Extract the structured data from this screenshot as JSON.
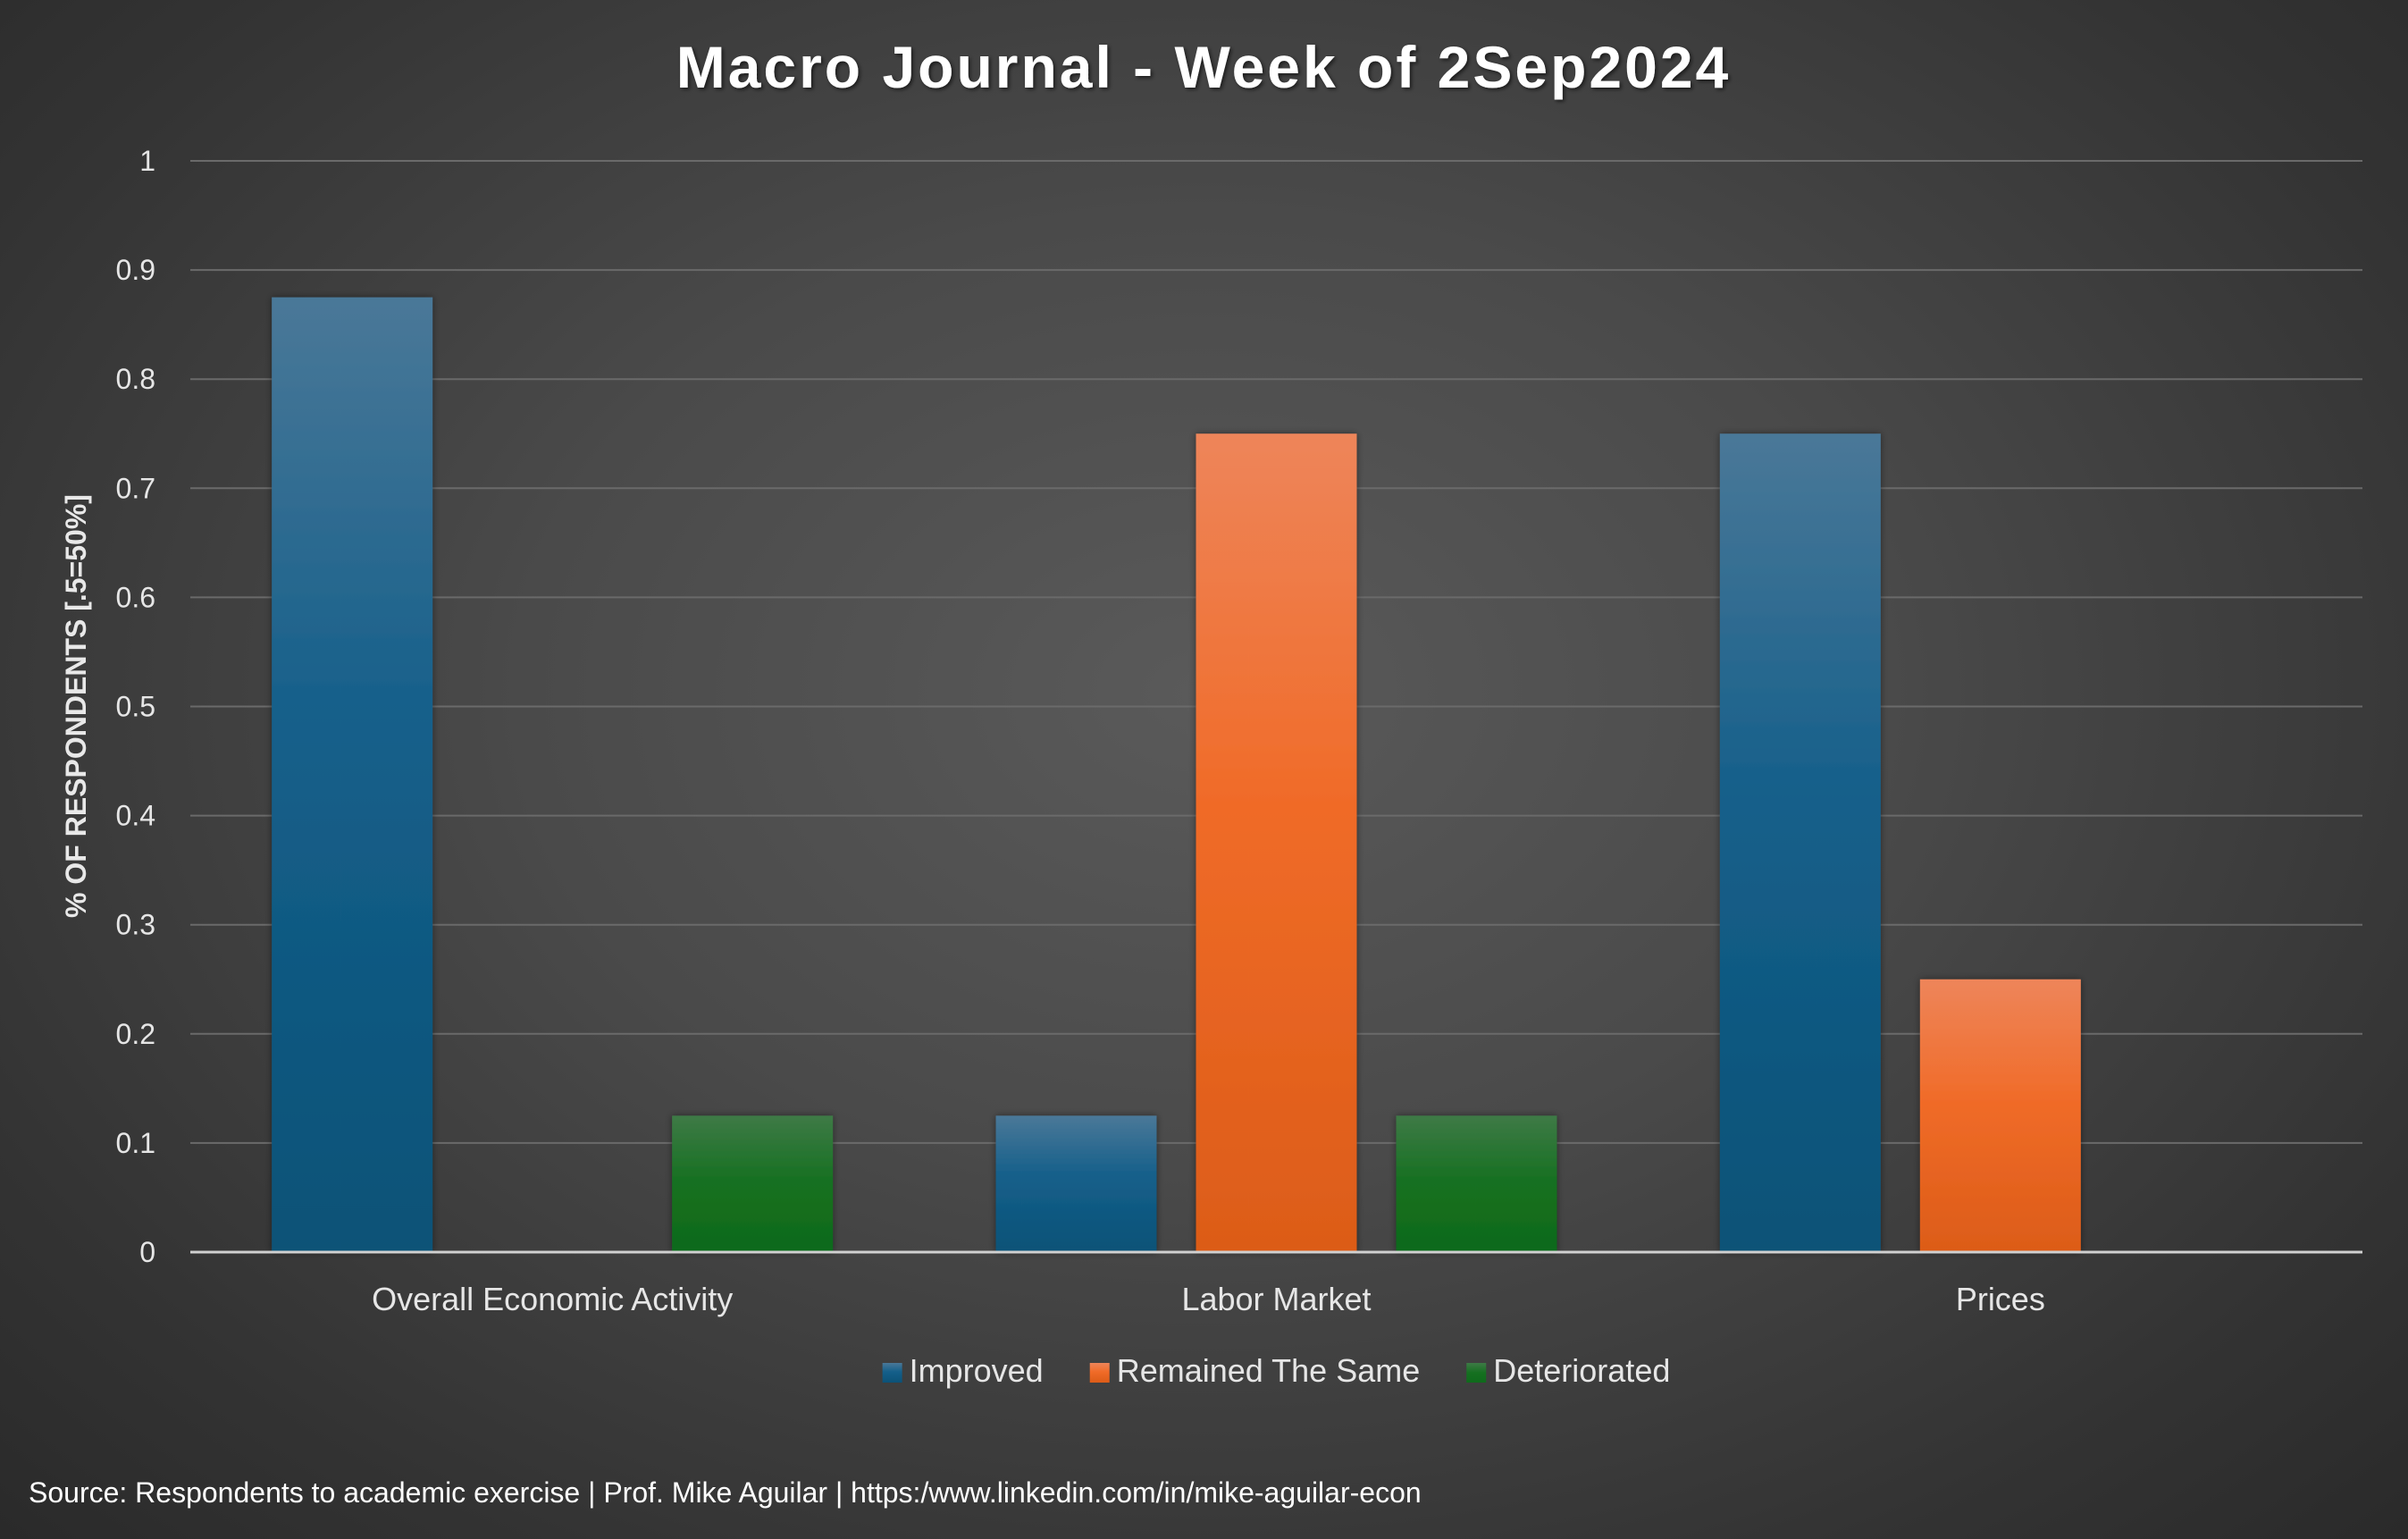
{
  "chart_data": {
    "type": "bar",
    "title": "Macro Journal - Week of 2Sep2024",
    "xlabel": "",
    "ylabel": "% OF RESPONDENTS [.5=50%]",
    "ylim": [
      0,
      1
    ],
    "yticks": [
      "0",
      "0.1",
      "0.2",
      "0.3",
      "0.4",
      "0.5",
      "0.6",
      "0.7",
      "0.8",
      "0.9",
      "1"
    ],
    "categories": [
      "Overall Economic Activity",
      "Labor Market",
      "Prices"
    ],
    "series": [
      {
        "name": "Improved",
        "values": [
          0.875,
          0.125,
          0.75
        ],
        "color": "#1a6a96"
      },
      {
        "name": "Remained The Same",
        "values": [
          0,
          0.75,
          0.25
        ],
        "color": "#f07030"
      },
      {
        "name": "Deteriorated",
        "values": [
          0.125,
          0.125,
          0
        ],
        "color": "#1e7a28"
      }
    ],
    "grid": true,
    "legend": "bottom"
  },
  "footer": {
    "source": "Source: Respondents to academic exercise | Prof. Mike Aguilar  | https:/www.linkedin.com/in/mike-aguilar-econ"
  }
}
